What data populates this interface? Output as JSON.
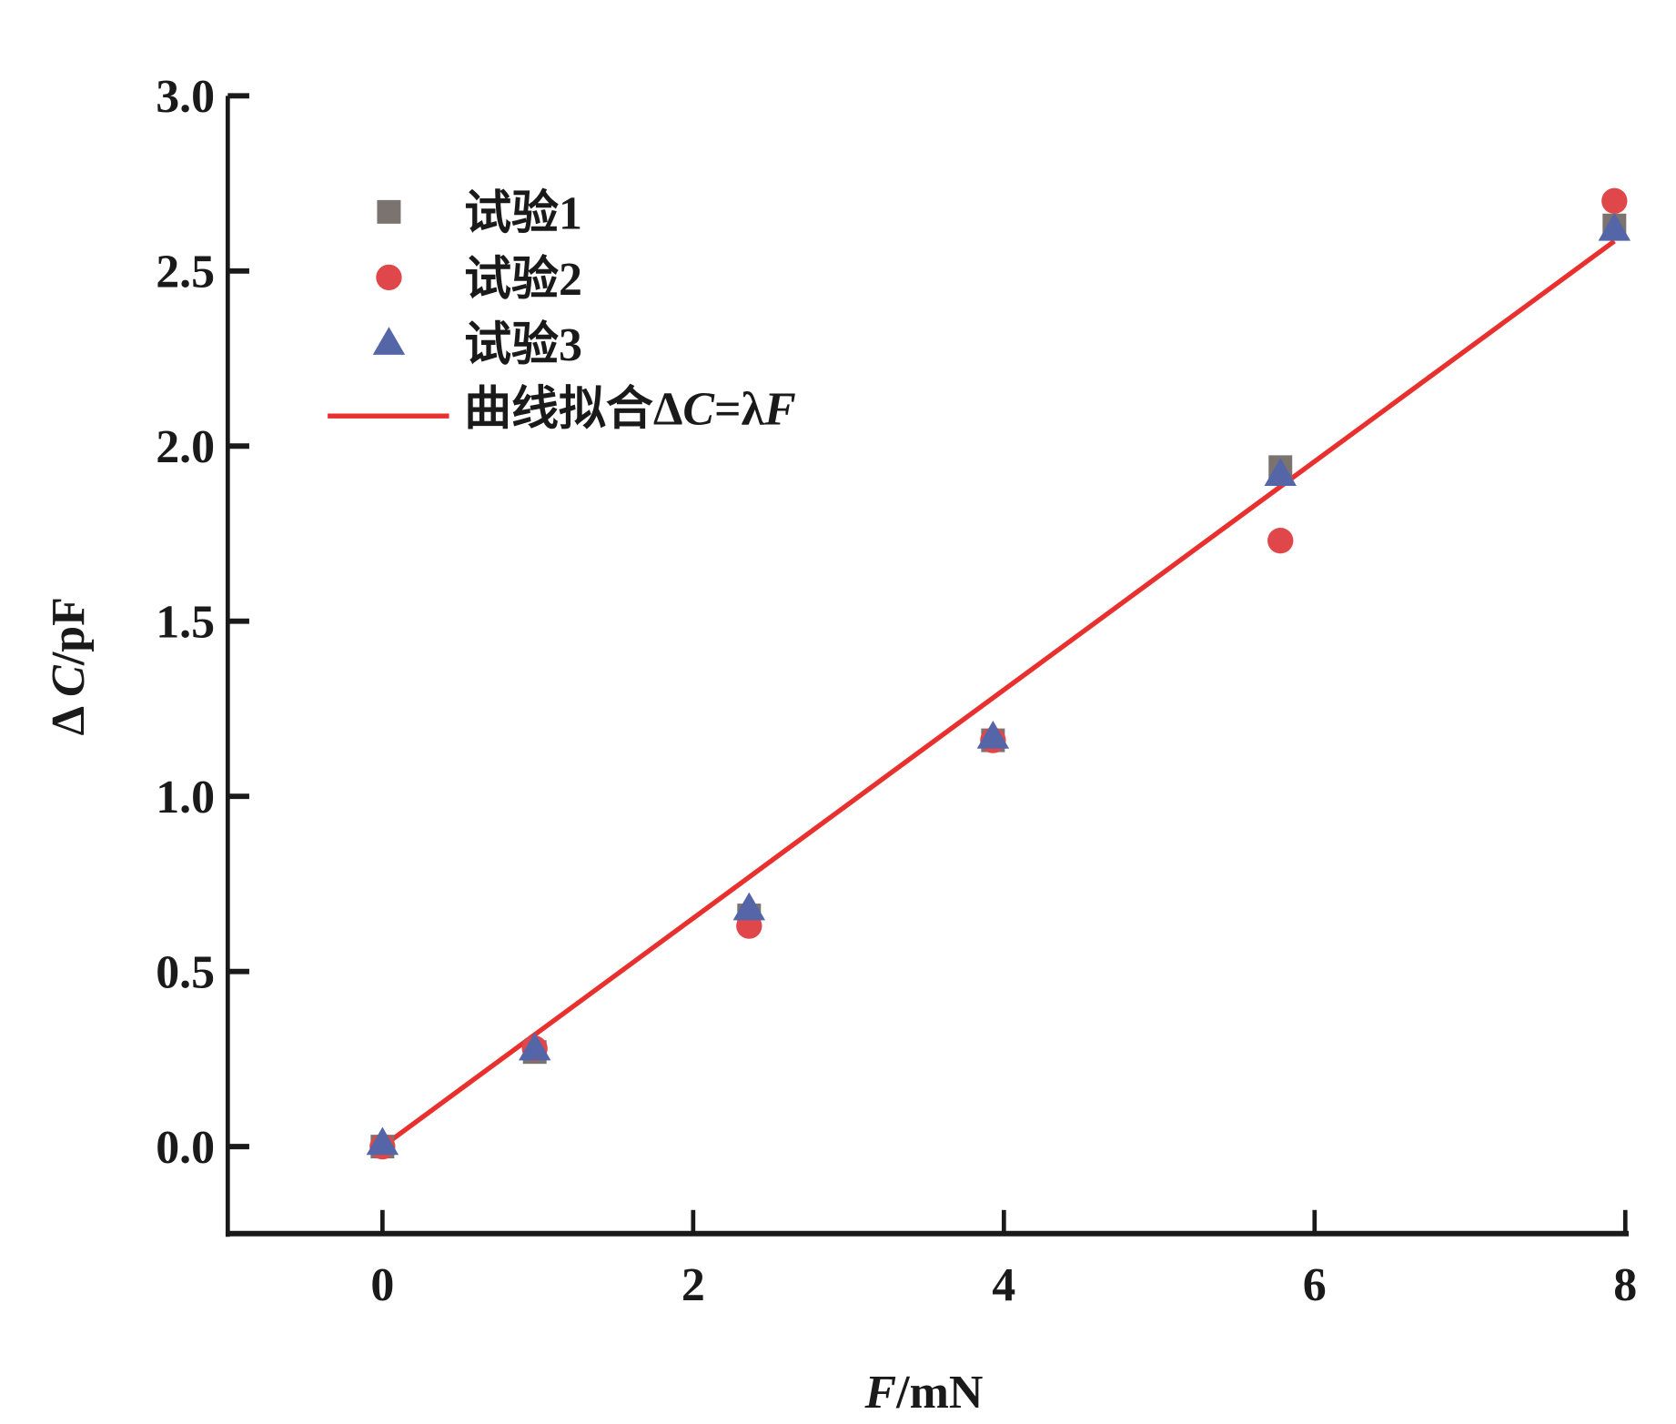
{
  "chart_data": {
    "type": "scatter",
    "title": "",
    "xlabel": "F/mN",
    "ylabel": "ΔC/pF",
    "xlim": [
      -1,
      8
    ],
    "ylim": [
      -0.25,
      3.0
    ],
    "xticks": [
      "0",
      "2",
      "4",
      "6",
      "8"
    ],
    "yticks": [
      "0.0",
      "0.5",
      "1.0",
      "1.5",
      "2.0",
      "2.5",
      "3.0"
    ],
    "grid": false,
    "legend_position": "top-left",
    "series": [
      {
        "name": "试验1",
        "marker": "square",
        "color": "#7a7370",
        "x": [
          0,
          0.98,
          2.36,
          3.93,
          5.78,
          7.93
        ],
        "y": [
          0.0,
          0.27,
          0.66,
          1.16,
          1.94,
          2.63
        ]
      },
      {
        "name": "试验2",
        "marker": "circle",
        "color": "#e0474a",
        "x": [
          0,
          0.98,
          2.36,
          3.93,
          5.78,
          7.93
        ],
        "y": [
          0.0,
          0.28,
          0.63,
          1.16,
          1.73,
          2.7
        ]
      },
      {
        "name": "试验3",
        "marker": "triangle",
        "color": "#5465a8",
        "x": [
          0,
          0.98,
          2.36,
          3.93,
          5.78,
          7.93
        ],
        "y": [
          0.01,
          0.28,
          0.68,
          1.17,
          1.92,
          2.62
        ]
      }
    ],
    "fit": {
      "name": "曲线拟合ΔC=λF",
      "color": "#e8312f",
      "lambda": 0.326,
      "x_range": [
        0,
        7.93
      ]
    }
  }
}
